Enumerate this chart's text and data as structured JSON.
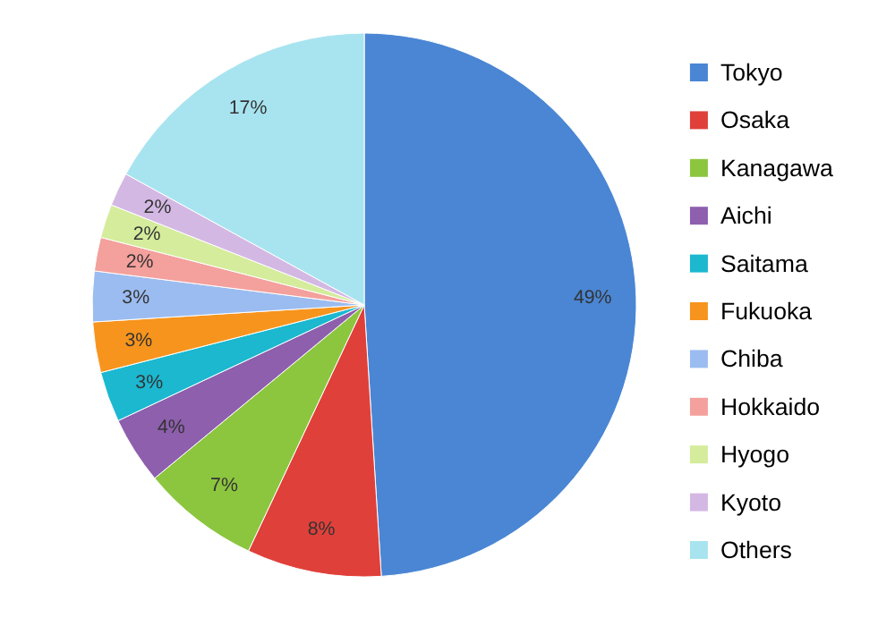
{
  "chart_data": {
    "type": "pie",
    "categories": [
      "Tokyo",
      "Osaka",
      "Kanagawa",
      "Aichi",
      "Saitama",
      "Fukuoka",
      "Chiba",
      "Hokkaido",
      "Hyogo",
      "Kyoto",
      "Others"
    ],
    "values": [
      49,
      8,
      7,
      4,
      3,
      3,
      3,
      2,
      2,
      2,
      17
    ],
    "value_labels": [
      "49%",
      "8%",
      "7%",
      "4%",
      "3%",
      "3%",
      "3%",
      "2%",
      "2%",
      "2%",
      "17%"
    ],
    "colors": [
      "#4a86d4",
      "#e0403a",
      "#8cc63f",
      "#8e5fad",
      "#1bb8d0",
      "#f7941d",
      "#9bbcf0",
      "#f4a09c",
      "#d4ec9c",
      "#d4b8e4",
      "#a8e4f0"
    ],
    "legend": "right"
  }
}
